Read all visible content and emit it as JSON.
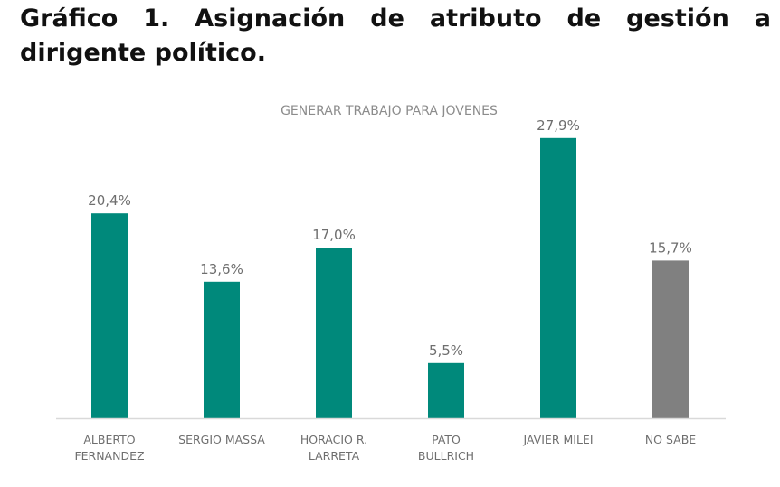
{
  "document": {
    "title": "Gráfico 1. Asignación de atributo de gestión a dirigente político."
  },
  "chart_data": {
    "type": "bar",
    "title": "",
    "subtitle": "GENERAR TRABAJO PARA JOVENES",
    "xlabel": "",
    "ylabel": "",
    "categories": [
      [
        "ALBERTO",
        "FERNANDEZ"
      ],
      [
        "SERGIO MASSA"
      ],
      [
        "HORACIO R.",
        "LARRETA"
      ],
      [
        "PATO",
        "BULLRICH"
      ],
      [
        "JAVIER MILEI"
      ],
      [
        "NO SABE"
      ]
    ],
    "values": [
      20.4,
      13.6,
      17.0,
      5.5,
      27.9,
      15.7
    ],
    "value_labels": [
      "20,4%",
      "13,6%",
      "17,0%",
      "5,5%",
      "27,9%",
      "15,7%"
    ],
    "unit": "%",
    "ylim": [
      0,
      30
    ],
    "grid": false,
    "legend": "none",
    "colors": {
      "default": "#00897b",
      "highlight": "#808080",
      "highlight_index": 5
    }
  }
}
